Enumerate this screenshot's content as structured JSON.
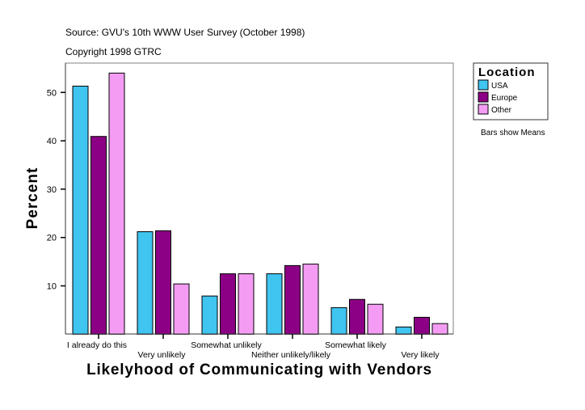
{
  "chart_data": {
    "type": "bar",
    "source_note": "Source: GVU's 10th WWW User Survey (October 1998)",
    "copyright_note": "Copyright 1998 GTRC",
    "xlabel": "Likelyhood of Communicating with Vendors",
    "ylabel": "Percent",
    "ylim": [
      0,
      56
    ],
    "yticks": [
      10,
      20,
      30,
      40,
      50
    ],
    "grid": false,
    "categories": [
      "I already do this",
      "Very unlikely",
      "Somewhat unlikely",
      "Neither unlikely/likely",
      "Somewhat likely",
      "Very likely"
    ],
    "series": [
      {
        "name": "USA",
        "color": "#40c4f0",
        "values": [
          51.3,
          21.2,
          7.9,
          12.5,
          5.5,
          1.5
        ]
      },
      {
        "name": "Europe",
        "color": "#8b0084",
        "values": [
          40.9,
          21.4,
          12.5,
          14.2,
          7.2,
          3.5
        ]
      },
      {
        "name": "Other",
        "color": "#f49cf4",
        "values": [
          54.0,
          10.4,
          12.5,
          14.5,
          6.2,
          2.2
        ]
      }
    ],
    "legend": {
      "title": "Location",
      "placement": "right"
    },
    "annotation": "Bars show Means"
  }
}
